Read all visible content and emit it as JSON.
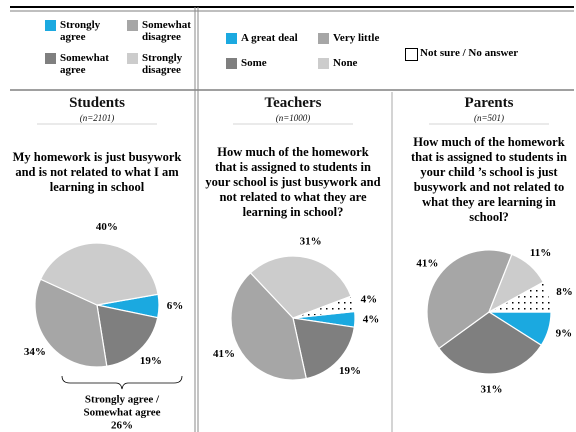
{
  "chart_data": [
    {
      "type": "pie",
      "title": "Students",
      "subtitle": "(n=2101)",
      "question": "My homework is just busywork and is not related to what I am learning in school",
      "categories": [
        "Strongly agree",
        "Somewhat agree",
        "Somewhat disagree",
        "Strongly disagree"
      ],
      "values": [
        6,
        19,
        34,
        40
      ],
      "value_labels": [
        "6%",
        "19%",
        "34%",
        "40%"
      ],
      "colors": [
        "#1ba9e0",
        "#7f7f7f",
        "#a6a6a6",
        "#cccccc"
      ],
      "annotation": [
        "Strongly agree /",
        "Somewhat agree",
        "26%"
      ]
    },
    {
      "type": "pie",
      "title": "Teachers",
      "subtitle": "(n=1000)",
      "question": "How much of the homework that is assigned to students in your school is just busywork and not related to what they are learning in school?",
      "categories": [
        "A great deal",
        "Some",
        "Very little",
        "None",
        "Not sure / No answer"
      ],
      "values": [
        4,
        19,
        41,
        31,
        4
      ],
      "value_labels": [
        "4%",
        "19%",
        "41%",
        "31%",
        "4%"
      ],
      "colors": [
        "#1ba9e0",
        "#7f7f7f",
        "#a6a6a6",
        "#cccccc",
        "#ffffff"
      ],
      "patterns": [
        null,
        null,
        null,
        null,
        "dots"
      ]
    },
    {
      "type": "pie",
      "title": "Parents",
      "subtitle": "(n=501)",
      "question": "How much of the homework that is assigned to students in your child ’s school is just busywork and not related to what they are learning in school?",
      "categories": [
        "A great deal",
        "Some",
        "Very little",
        "None",
        "Not sure / No answer"
      ],
      "values": [
        9,
        31,
        41,
        11,
        8
      ],
      "value_labels": [
        "9%",
        "31%",
        "41%",
        "11%",
        "8%"
      ],
      "colors": [
        "#1ba9e0",
        "#7f7f7f",
        "#a6a6a6",
        "#cccccc",
        "#ffffff"
      ],
      "patterns": [
        null,
        null,
        null,
        null,
        "dots"
      ]
    }
  ]
}
